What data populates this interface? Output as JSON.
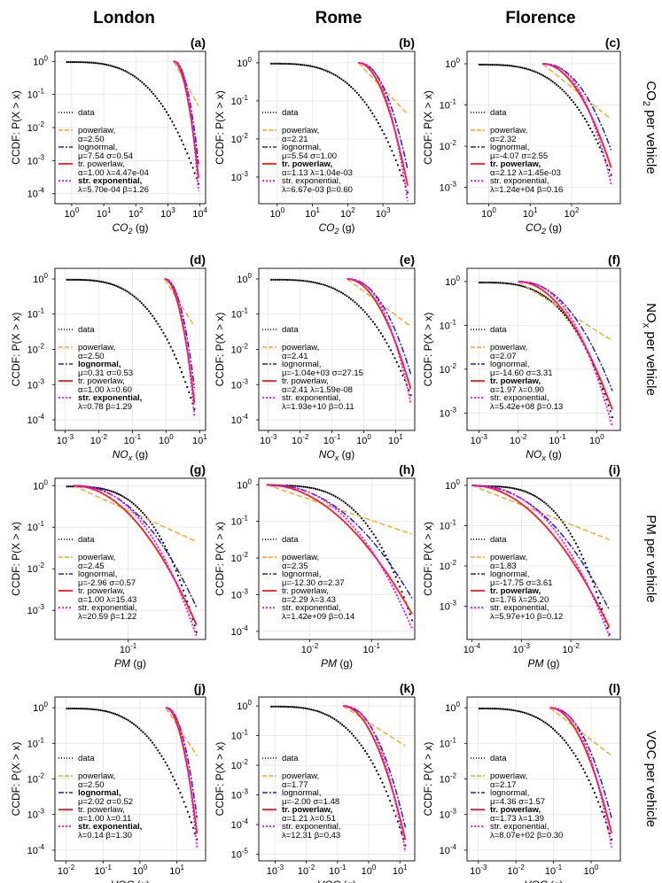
{
  "columns": [
    "London",
    "Rome",
    "Florence"
  ],
  "rows": [
    "CO<sub>2</sub> per vehicle",
    "NO<sub>x</sub> per vehicle",
    "PM per vehicle",
    "VOC per vehicle"
  ],
  "row_labels": [
    {
      "pre": "CO",
      "sub": "2",
      "post": " per vehicle"
    },
    {
      "pre": "NO",
      "sub": "x",
      "post": " per vehicle"
    },
    {
      "pre": "PM",
      "sub": "",
      "post": " per vehicle"
    },
    {
      "pre": "VOC",
      "sub": "",
      "post": " per vehicle"
    }
  ],
  "y_axis_label": "CCDF: P(X > x)",
  "colors": {
    "data": "#000000",
    "powerlaw": "#f5a623",
    "lognormal": "#1f1fd6",
    "trpowerlaw": "#ff1a1a",
    "strexp": "#ff00ff",
    "grid": "#e6e6e6"
  },
  "legend_keys": [
    "data",
    "powerlaw",
    "lognormal",
    "trpowerlaw",
    "strexp"
  ],
  "chart_data": [
    {
      "panel": "(a)",
      "type": "line",
      "xlabel": "CO2 (g)",
      "xvar": "CO",
      "xsub": "2",
      "xunit": " (g)",
      "xlim": [
        0.3,
        15000
      ],
      "ylim": [
        5e-05,
        2
      ],
      "xticks": [
        1,
        10,
        100,
        1000,
        10000
      ],
      "yticks": [
        0.0001,
        0.001,
        0.01,
        0.1,
        1
      ],
      "xmin_fit": 1500,
      "xmax": 9000,
      "ymin_data": 0.0002,
      "legend": [
        {
          "key": "data",
          "label": "data",
          "params": "",
          "bold": false
        },
        {
          "key": "powerlaw",
          "label": "powerlaw,",
          "params": "α=2.50",
          "bold": false
        },
        {
          "key": "lognormal",
          "label": "lognormal,",
          "params": "μ=7.54 σ=0.54",
          "bold": false
        },
        {
          "key": "trpowerlaw",
          "label": "tr. powerlaw,",
          "params": "α=1.00 λ=4.47e-04",
          "bold": false
        },
        {
          "key": "strexp",
          "label": "str. exponential,",
          "params": "λ=5.70e-04 β=1.26",
          "bold": true
        }
      ]
    },
    {
      "panel": "(b)",
      "type": "line",
      "xlabel": "CO2 (g)",
      "xvar": "CO",
      "xsub": "2",
      "xunit": " (g)",
      "xlim": [
        0.3,
        8000
      ],
      "ylim": [
        0.0002,
        2
      ],
      "xticks": [
        1,
        10,
        100,
        1000
      ],
      "yticks": [
        0.001,
        0.01,
        0.1,
        1
      ],
      "xmin_fit": 200,
      "xmax": 5000,
      "ymin_data": 0.0004,
      "legend": [
        {
          "key": "data",
          "label": "data",
          "params": "",
          "bold": false
        },
        {
          "key": "powerlaw",
          "label": "powerlaw,",
          "params": "α=2.21",
          "bold": false
        },
        {
          "key": "lognormal",
          "label": "lognormal,",
          "params": "μ=5.54 σ=1.00",
          "bold": false
        },
        {
          "key": "trpowerlaw",
          "label": "tr. powerlaw,",
          "params": "α=1.13 λ=1.04e-03",
          "bold": true
        },
        {
          "key": "strexp",
          "label": "str. exponential,",
          "params": "λ=6.67e-03 β=0.60",
          "bold": false
        }
      ]
    },
    {
      "panel": "(c)",
      "type": "line",
      "xlabel": "CO2 (g)",
      "xvar": "CO",
      "xsub": "2",
      "xunit": " (g)",
      "xlim": [
        0.3,
        1500
      ],
      "ylim": [
        0.0004,
        2
      ],
      "xticks": [
        1,
        10,
        100
      ],
      "yticks": [
        0.001,
        0.01,
        0.1,
        1
      ],
      "xmin_fit": 20,
      "xmax": 900,
      "ymin_data": 0.002,
      "legend": [
        {
          "key": "data",
          "label": "data",
          "params": "",
          "bold": false
        },
        {
          "key": "powerlaw",
          "label": "powerlaw,",
          "params": "α=2.32",
          "bold": false
        },
        {
          "key": "lognormal",
          "label": "lognormal,",
          "params": "μ=-4.07 σ=2.55",
          "bold": false
        },
        {
          "key": "trpowerlaw",
          "label": "tr. powerlaw,",
          "params": "α=2.12 λ=1.45e-03",
          "bold": true
        },
        {
          "key": "strexp",
          "label": "str. exponential,",
          "params": "λ=1.24e+04 β=0.16",
          "bold": false
        }
      ]
    },
    {
      "panel": "(d)",
      "type": "line",
      "xlabel": "NOx (g)",
      "xvar": "NO",
      "xsub": "x",
      "xunit": " (g)",
      "xlim": [
        0.0005,
        15
      ],
      "ylim": [
        5e-05,
        2
      ],
      "xticks": [
        0.001,
        0.01,
        0.1,
        1,
        10
      ],
      "yticks": [
        0.0001,
        0.001,
        0.01,
        0.1,
        1
      ],
      "xmin_fit": 0.9,
      "xmax": 7,
      "ymin_data": 0.0002,
      "legend": [
        {
          "key": "data",
          "label": "data",
          "params": "",
          "bold": false
        },
        {
          "key": "powerlaw",
          "label": "powerlaw,",
          "params": "α=2.50",
          "bold": false
        },
        {
          "key": "lognormal",
          "label": "lognormal,",
          "params": "μ=0.31 σ=0.53",
          "bold": true
        },
        {
          "key": "trpowerlaw",
          "label": "tr. powerlaw,",
          "params": "α=1.00 λ=0.60",
          "bold": false
        },
        {
          "key": "strexp",
          "label": "str. exponential,",
          "params": "λ=0.78 β=1.29",
          "bold": true
        }
      ]
    },
    {
      "panel": "(e)",
      "type": "line",
      "xlabel": "NOx (g)",
      "xvar": "NO",
      "xsub": "x",
      "xunit": " (g)",
      "xlim": [
        0.0005,
        40
      ],
      "ylim": [
        5e-05,
        2
      ],
      "xticks": [
        0.001,
        0.01,
        0.1,
        1,
        10
      ],
      "yticks": [
        0.0001,
        0.001,
        0.01,
        0.1,
        1
      ],
      "xmin_fit": 0.3,
      "xmax": 30,
      "ymin_data": 0.0005,
      "legend": [
        {
          "key": "data",
          "label": "data",
          "params": "",
          "bold": false
        },
        {
          "key": "powerlaw",
          "label": "powerlaw,",
          "params": "α=2.41",
          "bold": false
        },
        {
          "key": "lognormal",
          "label": "lognormal,",
          "params": "μ=-1.04e+03 σ=27.15",
          "bold": false
        },
        {
          "key": "trpowerlaw",
          "label": "tr. powerlaw,",
          "params": "α=2.41 λ=1.59e-08",
          "bold": false
        },
        {
          "key": "strexp",
          "label": "str. exponential,",
          "params": "λ=1.93e+10 β=0.11",
          "bold": false
        }
      ]
    },
    {
      "panel": "(f)",
      "type": "line",
      "xlabel": "NOx (g)",
      "xvar": "NO",
      "xsub": "x",
      "xunit": " (g)",
      "xlim": [
        0.0005,
        4
      ],
      "ylim": [
        0.0004,
        2
      ],
      "xticks": [
        0.001,
        0.01,
        0.1,
        1
      ],
      "yticks": [
        0.001,
        0.01,
        0.1,
        1
      ],
      "xmin_fit": 0.01,
      "xmax": 2.5,
      "ymin_data": 0.0008,
      "legend": [
        {
          "key": "data",
          "label": "data",
          "params": "",
          "bold": false
        },
        {
          "key": "powerlaw",
          "label": "powerlaw,",
          "params": "α=2.07",
          "bold": false
        },
        {
          "key": "lognormal",
          "label": "lognormal,",
          "params": "μ=-14.60 σ=3.31",
          "bold": false
        },
        {
          "key": "trpowerlaw",
          "label": "tr. powerlaw,",
          "params": "α=1.97 λ=0.90",
          "bold": true
        },
        {
          "key": "strexp",
          "label": "str. exponential,",
          "params": "λ=5.42e+08 β=0.13",
          "bold": false
        }
      ]
    },
    {
      "panel": "(g)",
      "type": "line",
      "xlabel": "PM (g)",
      "xvar": "PM",
      "xsub": "",
      "xunit": " (g)",
      "xlim": [
        0.02,
        0.55
      ],
      "ylim": [
        0.0002,
        1.5
      ],
      "xticks": [
        0.1
      ],
      "yticks": [
        0.001,
        0.01,
        0.1,
        1
      ],
      "xmin_fit": 0.03,
      "xmax": 0.45,
      "ymin_data": 0.0003,
      "legend": [
        {
          "key": "data",
          "label": "data",
          "params": "",
          "bold": false
        },
        {
          "key": "powerlaw",
          "label": "powerlaw,",
          "params": "α=2.45",
          "bold": false
        },
        {
          "key": "lognormal",
          "label": "lognormal,",
          "params": "μ=-2.96 σ=0.57",
          "bold": false
        },
        {
          "key": "trpowerlaw",
          "label": "tr. powerlaw,",
          "params": "α=1.00 λ=15.43",
          "bold": false
        },
        {
          "key": "strexp",
          "label": "str. exponential,",
          "params": "λ=20.59 β=1.22",
          "bold": false
        }
      ]
    },
    {
      "panel": "(h)",
      "type": "line",
      "xlabel": "PM (g)",
      "xvar": "PM",
      "xsub": "",
      "xunit": " (g)",
      "xlim": [
        0.0015,
        0.5
      ],
      "ylim": [
        6e-05,
        1.5
      ],
      "xticks": [
        0.01,
        0.1
      ],
      "yticks": [
        0.0001,
        0.001,
        0.01,
        0.1,
        1
      ],
      "xmin_fit": 0.002,
      "xmax": 0.45,
      "ymin_data": 0.0002,
      "legend": [
        {
          "key": "data",
          "label": "data",
          "params": "",
          "bold": false
        },
        {
          "key": "powerlaw",
          "label": "powerlaw,",
          "params": "α=2.35",
          "bold": false
        },
        {
          "key": "lognormal",
          "label": "lognormal,",
          "params": "μ=-12.30 σ=2.37",
          "bold": false
        },
        {
          "key": "trpowerlaw",
          "label": "tr. powerlaw,",
          "params": "α=2.29 λ=3.43",
          "bold": false
        },
        {
          "key": "strexp",
          "label": "str. exponential,",
          "params": "λ=1.42e+09 β=0.14",
          "bold": false
        }
      ]
    },
    {
      "panel": "(i)",
      "type": "line",
      "xlabel": "PM (g)",
      "xvar": "PM",
      "xsub": "",
      "xunit": " (g)",
      "xlim": [
        8e-05,
        0.1
      ],
      "ylim": [
        0.00015,
        1.5
      ],
      "xticks": [
        0.0001,
        0.001,
        0.01
      ],
      "yticks": [
        0.001,
        0.01,
        0.1,
        1
      ],
      "xmin_fit": 0.0001,
      "xmax": 0.06,
      "ymin_data": 0.0002,
      "legend": [
        {
          "key": "data",
          "label": "data",
          "params": "",
          "bold": false
        },
        {
          "key": "powerlaw",
          "label": "powerlaw,",
          "params": "α=1.83",
          "bold": false
        },
        {
          "key": "lognormal",
          "label": "lognormal,",
          "params": "μ=-17.75 σ=3.61",
          "bold": false
        },
        {
          "key": "trpowerlaw",
          "label": "tr. powerlaw,",
          "params": "α=1.76 λ=25.20",
          "bold": true
        },
        {
          "key": "strexp",
          "label": "str. exponential,",
          "params": "λ=5.97e+10 β=0.12",
          "bold": false
        }
      ]
    },
    {
      "panel": "(j)",
      "type": "line",
      "xlabel": "VOC (g)",
      "xvar": "VOC",
      "xsub": "",
      "xunit": " (g)",
      "xlim": [
        0.005,
        60
      ],
      "ylim": [
        5e-05,
        2
      ],
      "xticks": [
        0.01,
        0.1,
        1,
        10
      ],
      "yticks": [
        0.0001,
        0.001,
        0.01,
        0.1,
        1
      ],
      "xmin_fit": 5,
      "xmax": 35,
      "ymin_data": 0.0002,
      "legend": [
        {
          "key": "data",
          "label": "data",
          "params": "",
          "bold": false
        },
        {
          "key": "powerlaw",
          "label": "powerlaw,",
          "params": "α=2.50",
          "bold": false
        },
        {
          "key": "lognormal",
          "label": "lognormal,",
          "params": "μ=2.02 σ=0.52",
          "bold": true
        },
        {
          "key": "trpowerlaw",
          "label": "tr. powerlaw,",
          "params": "α=1.00 λ=0.11",
          "bold": false
        },
        {
          "key": "strexp",
          "label": "str. exponential,",
          "params": "λ=0.14 β=1.30",
          "bold": true
        }
      ]
    },
    {
      "panel": "(k)",
      "type": "line",
      "xlabel": "VOC (g)",
      "xvar": "VOC",
      "xsub": "",
      "xunit": " (g)",
      "xlim": [
        0.0003,
        30
      ],
      "ylim": [
        6e-06,
        2
      ],
      "xticks": [
        0.001,
        0.01,
        0.1,
        1,
        10
      ],
      "yticks": [
        1e-05,
        0.0001,
        0.001,
        0.01,
        0.1,
        1
      ],
      "xmin_fit": 0.15,
      "xmax": 15,
      "ymin_data": 2e-05,
      "legend": [
        {
          "key": "data",
          "label": "data",
          "params": "",
          "bold": false
        },
        {
          "key": "powerlaw",
          "label": "powerlaw,",
          "params": "α=1.77",
          "bold": false
        },
        {
          "key": "lognormal",
          "label": "lognormal,",
          "params": "μ=-2.00 σ=1.48",
          "bold": false
        },
        {
          "key": "trpowerlaw",
          "label": "tr. powerlaw,",
          "params": "α=1.21 λ=0.51",
          "bold": true
        },
        {
          "key": "strexp",
          "label": "str. exponential,",
          "params": "λ=12.31 β=0.43",
          "bold": false
        }
      ]
    },
    {
      "panel": "(l)",
      "type": "line",
      "xlabel": "VOC (g)",
      "xvar": "VOC",
      "xsub": "",
      "xunit": " (g)",
      "xlim": [
        0.0005,
        6
      ],
      "ylim": [
        5e-05,
        2
      ],
      "xticks": [
        0.001,
        0.01,
        0.1,
        1
      ],
      "yticks": [
        0.0001,
        0.001,
        0.01,
        0.1,
        1
      ],
      "xmin_fit": 0.08,
      "xmax": 3.5,
      "ymin_data": 0.0002,
      "legend": [
        {
          "key": "data",
          "label": "data",
          "params": "",
          "bold": false
        },
        {
          "key": "powerlaw",
          "label": "powerlaw,",
          "params": "α=2.17",
          "bold": false
        },
        {
          "key": "lognormal",
          "label": "lognormal,",
          "params": "μ=4.36 σ=1.57",
          "bold": false
        },
        {
          "key": "trpowerlaw",
          "label": "tr. powerlaw,",
          "params": "α=1.73 λ=1.39",
          "bold": true
        },
        {
          "key": "strexp",
          "label": "str. exponential,",
          "params": "λ=8.07e+02 β=0.30",
          "bold": false
        }
      ]
    }
  ]
}
